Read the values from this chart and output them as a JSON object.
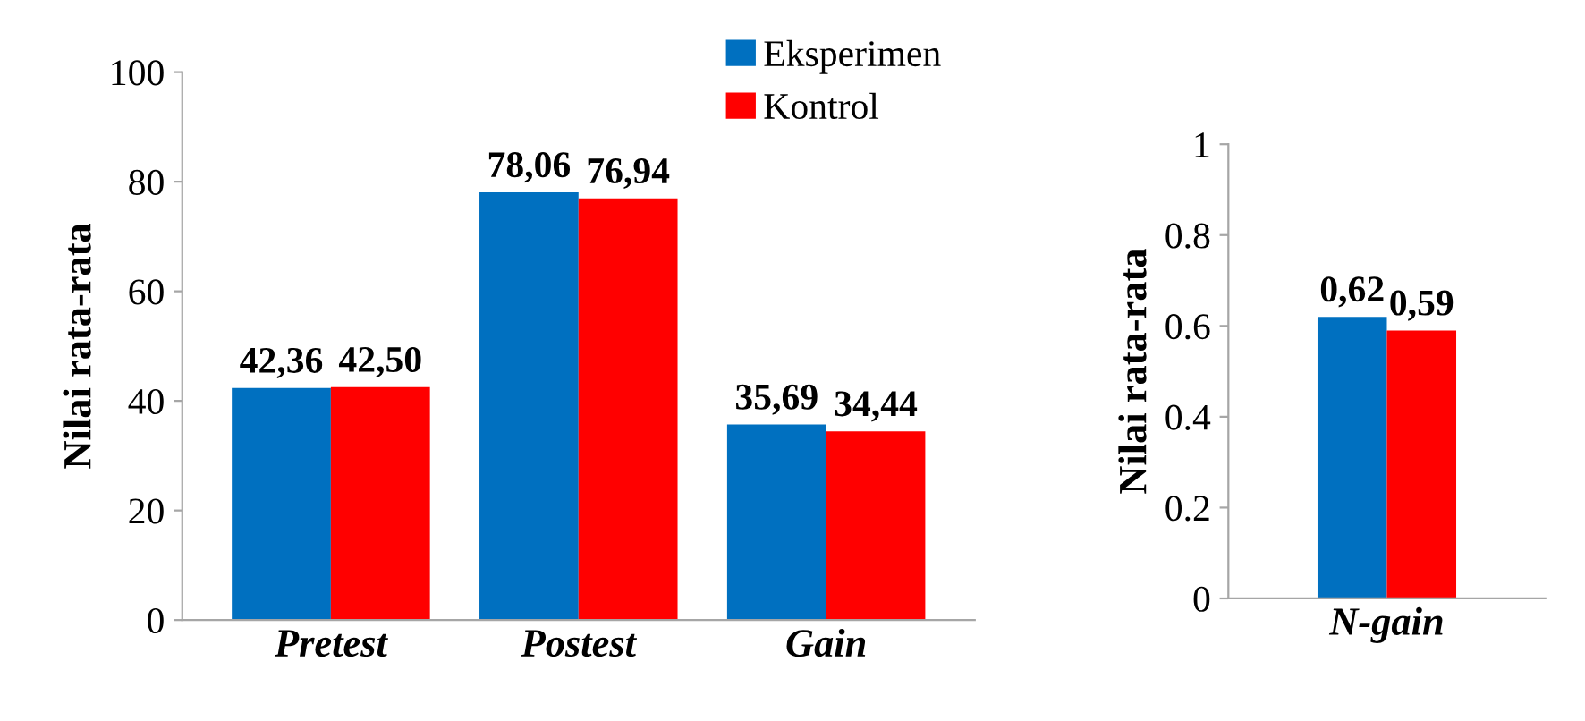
{
  "chart_data": [
    {
      "type": "bar",
      "ylabel": "Nilai rata-rata",
      "categories": [
        "Pretest",
        "Postest",
        "Gain"
      ],
      "series": [
        {
          "name": "Eksperimen",
          "color": "#0070c0",
          "values": [
            42.36,
            78.06,
            35.69
          ],
          "value_labels": [
            "42,36",
            "78,06",
            "35,69"
          ]
        },
        {
          "name": "Kontrol",
          "color": "#ff0000",
          "values": [
            42.5,
            76.94,
            34.44
          ],
          "value_labels": [
            "42,50",
            "76,94",
            "34,44"
          ]
        }
      ],
      "ylim": [
        0,
        100
      ],
      "yticks": [
        0,
        20,
        40,
        60,
        80,
        100
      ],
      "legend": "top right",
      "grid": false
    },
    {
      "type": "bar",
      "ylabel": "Nilai rata-rata",
      "categories": [
        "N-gain"
      ],
      "series": [
        {
          "color": "#0070c0",
          "values": [
            0.62
          ],
          "value_labels": [
            "0,62"
          ]
        },
        {
          "color": "#ff0000",
          "values": [
            0.59
          ],
          "value_labels": [
            "0,59"
          ]
        }
      ],
      "ylim": [
        0,
        1
      ],
      "yticks": [
        0,
        0.2,
        0.4,
        0.6,
        0.8,
        1
      ],
      "grid": false
    }
  ]
}
